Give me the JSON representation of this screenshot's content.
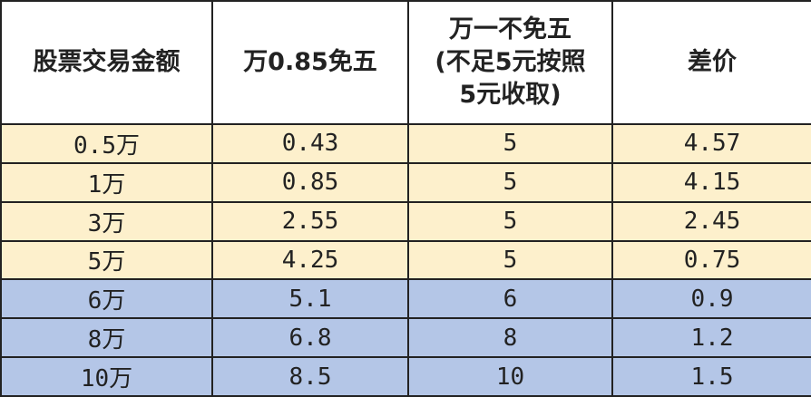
{
  "table": {
    "header": [
      "股票交易金额",
      "万0.85免五",
      [
        "万一不免五",
        "(不足5元按照",
        "5元收取)"
      ],
      "差价"
    ],
    "rows": [
      [
        "0.5万",
        "0.43",
        "5",
        "4.57"
      ],
      [
        "1万",
        "0.85",
        "5",
        "4.15"
      ],
      [
        "3万",
        "2.55",
        "5",
        "2.45"
      ],
      [
        "5万",
        "4.25",
        "5",
        "0.75"
      ],
      [
        "6万",
        "5.1",
        "6",
        "0.9"
      ],
      [
        "8万",
        "6.8",
        "8",
        "1.2"
      ],
      [
        "10万",
        "8.5",
        "10",
        "1.5"
      ]
    ]
  }
}
